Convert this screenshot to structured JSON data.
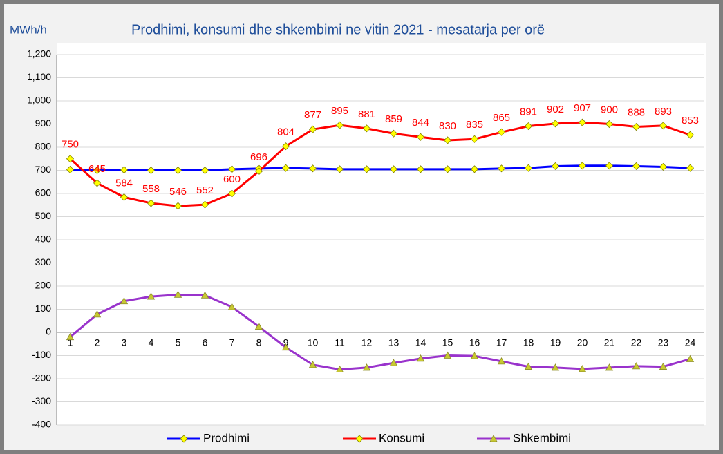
{
  "chart_data": {
    "type": "line",
    "title": "Prodhimi, konsumi dhe shkembimi ne vitin 2021 - mesatarja per orë",
    "y_label": "MWh/h",
    "categories": [
      "1",
      "2",
      "3",
      "4",
      "5",
      "6",
      "7",
      "8",
      "9",
      "10",
      "11",
      "12",
      "13",
      "14",
      "15",
      "16",
      "17",
      "18",
      "19",
      "20",
      "21",
      "22",
      "23",
      "24"
    ],
    "series": [
      {
        "name": "Prodhimi",
        "color": "#0000ff",
        "marker": "diamond",
        "marker_color": "#ffff00",
        "values": [
          703,
          700,
          702,
          700,
          700,
          700,
          705,
          708,
          710,
          708,
          705,
          705,
          705,
          705,
          705,
          705,
          708,
          710,
          718,
          720,
          720,
          718,
          715,
          710
        ]
      },
      {
        "name": "Konsumi",
        "color": "#ff0000",
        "marker": "diamond",
        "marker_color": "#ffff00",
        "data_labels": true,
        "values": [
          750,
          645,
          584,
          558,
          546,
          552,
          600,
          696,
          804,
          877,
          895,
          881,
          859,
          844,
          830,
          835,
          865,
          891,
          902,
          907,
          900,
          888,
          893,
          853
        ]
      },
      {
        "name": "Shkembimi",
        "color": "#9933cc",
        "marker": "triangle",
        "marker_color": "#c8c832",
        "values": [
          -20,
          78,
          135,
          155,
          163,
          160,
          110,
          25,
          -65,
          -140,
          -160,
          -152,
          -132,
          -113,
          -100,
          -102,
          -125,
          -148,
          -152,
          -158,
          -152,
          -146,
          -148,
          -115
        ]
      }
    ],
    "ylim": [
      -400,
      1200
    ],
    "yticks": [
      -400,
      -300,
      -200,
      -100,
      0,
      100,
      200,
      300,
      400,
      500,
      600,
      700,
      800,
      900,
      {
        "value": 1000,
        "label": "1,000"
      },
      {
        "value": 1100,
        "label": "1,100"
      },
      {
        "value": 1200,
        "label": "1,200"
      }
    ],
    "grid": true,
    "legend": "bottom"
  }
}
